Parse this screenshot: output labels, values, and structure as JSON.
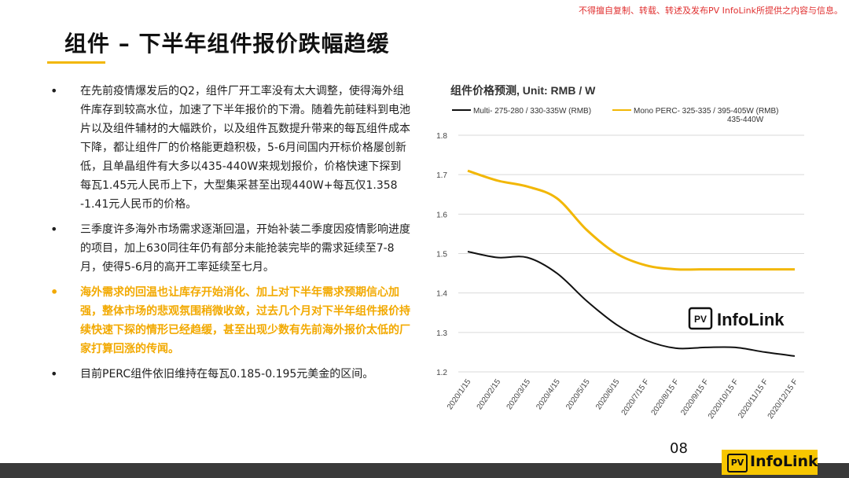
{
  "notice": "不得擅自复制、转载、转述及发布PV InfoLink所提供之内容与信息。",
  "title": "组件 – 下半年组件报价跌幅趋缓",
  "bullets": [
    "在先前疫情爆发后的Q2，组件厂开工率没有太大调整，使得海外组件库存到较高水位，加速了下半年报价的下滑。随着先前硅料到电池片以及组件辅材的大幅跌价，以及组件瓦数提升带来的每瓦组件成本下降，都让组件厂的价格能更趋积极，5-6月间国内开标价格屡创新低，且单晶组件有大多以435-440W来规划报价，价格快速下探到每瓦1.45元人民币上下，大型集采甚至出现440W+每瓦仅1.358 -1.41元人民币的价格。",
    "三季度许多海外市场需求逐渐回温，开始补装二季度因疫情影响进度的项目，加上630同往年仍有部分未能抢装完毕的需求延续至7-8月，使得5-6月的高开工率延续至七月。",
    "海外需求的回温也让库存开始消化、加上对下半年需求预期信心加强，整体市场的悲观氛围稍微收敛，过去几个月对下半年组件报价持续快速下探的情形已经趋缓，甚至出现少数有先前海外报价太低的厂家打算回涨的传闻。",
    "目前PERC组件依旧维持在每瓦0.185-0.195元美金的区间。"
  ],
  "chart_data": {
    "type": "line",
    "title": "组件价格预测, Unit: RMB / W",
    "xlabel": "",
    "ylabel": "",
    "ylim": [
      1.2,
      1.8
    ],
    "yticks": [
      1.2,
      1.3,
      1.4,
      1.5,
      1.6,
      1.7,
      1.8
    ],
    "grid": true,
    "legend_position": "top",
    "categories": [
      "2020/1/15",
      "2020/2/15",
      "2020/3/15",
      "2020/4/15",
      "2020/5/15",
      "2020/6/15",
      "2020/7/15 F",
      "2020/8/15 F",
      "2020/9/15 F",
      "2020/10/15 F",
      "2020/11/15 F",
      "2020/12/15 F"
    ],
    "series": [
      {
        "name": "Multi- 275-280 / 330-335W (RMB)",
        "color": "#111111",
        "values": [
          1.505,
          1.49,
          1.49,
          1.45,
          1.38,
          1.32,
          1.28,
          1.26,
          1.262,
          1.262,
          1.25,
          1.24
        ]
      },
      {
        "name": "Mono PERC- 325-335 / 395-405W (RMB)",
        "name_extra": "435-440W",
        "color": "#f2b705",
        "values": [
          1.71,
          1.685,
          1.67,
          1.64,
          1.56,
          1.5,
          1.47,
          1.46,
          1.46,
          1.46,
          1.46,
          1.46
        ]
      }
    ],
    "watermark": "InfoLink",
    "watermark_badge": "PV"
  },
  "page_number": "08",
  "footer": {
    "badge": "PV",
    "brand": "InfoLink"
  }
}
